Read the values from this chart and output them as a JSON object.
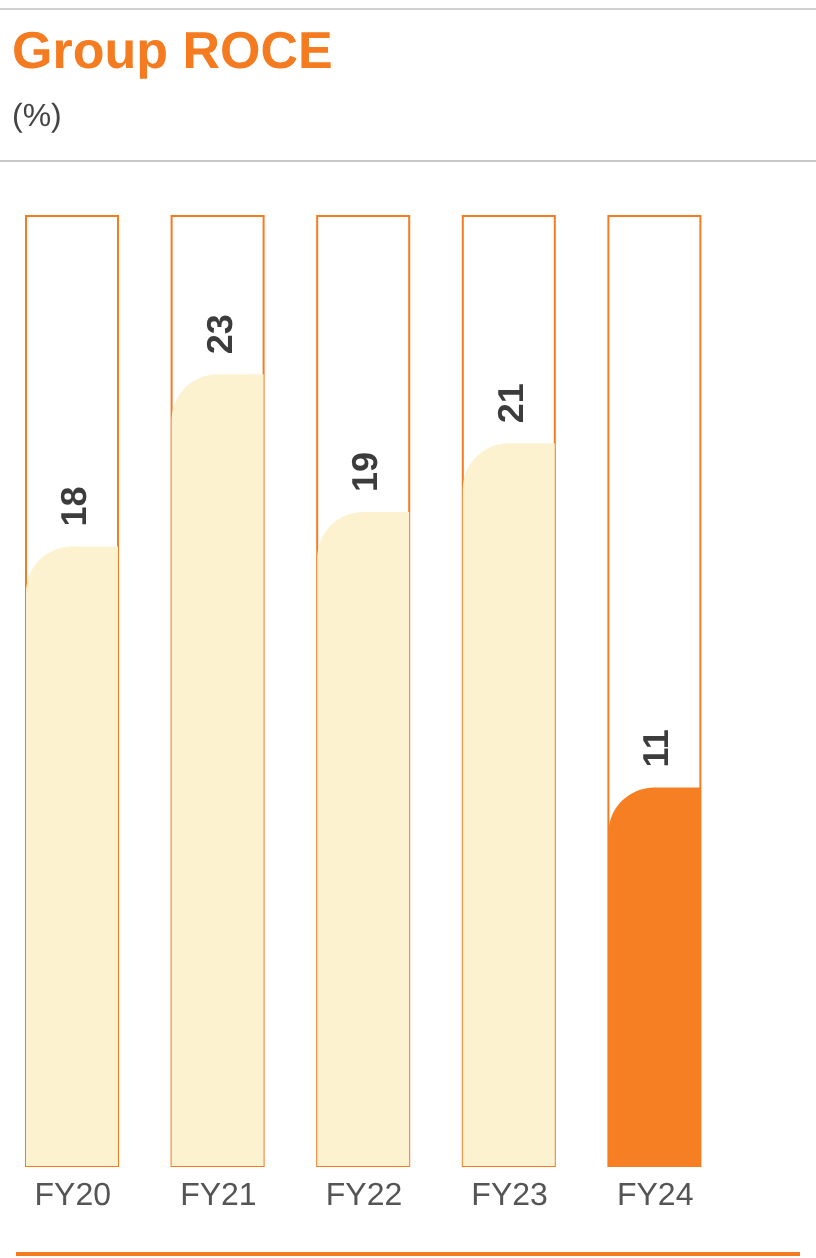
{
  "chart_data": {
    "type": "bar",
    "title": "Group ROCE",
    "subtitle": "(%)",
    "categories": [
      "FY20",
      "FY21",
      "FY22",
      "FY23",
      "FY24"
    ],
    "values": [
      18,
      23,
      19,
      21,
      11
    ],
    "colors": [
      "#fdf2cf",
      "#fdf2cf",
      "#fdf2cf",
      "#fdf2cf",
      "#f57f22"
    ],
    "tick_labels": "x",
    "data_labels": true,
    "grid": false,
    "legend": false
  }
}
